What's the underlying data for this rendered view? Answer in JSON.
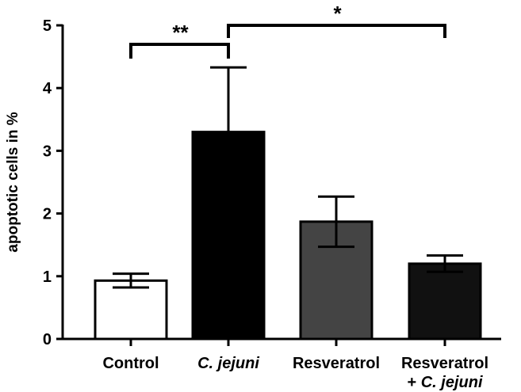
{
  "chart_data": {
    "type": "bar",
    "title": "",
    "xlabel": "",
    "ylabel": "apoptotic cells in %",
    "ylim": [
      0,
      5
    ],
    "yticks": [
      "0",
      "1",
      "2",
      "3",
      "4",
      "5"
    ],
    "grid": false,
    "legend": "none",
    "categories": [
      {
        "line1": "Control",
        "line2": "",
        "italic1": false,
        "italic2": false
      },
      {
        "line1": "C. jejuni",
        "line2": "",
        "italic1": true,
        "italic2": false
      },
      {
        "line1": "Resveratrol",
        "line2": "",
        "italic1": false,
        "italic2": false
      },
      {
        "line1": "Resveratrol",
        "line2": "+ C. jejuni",
        "italic1": false,
        "italic2": true
      }
    ],
    "values": [
      0.93,
      3.3,
      1.87,
      1.2
    ],
    "errors": [
      0.11,
      1.03,
      0.4,
      0.13
    ],
    "colors": [
      "#ffffff",
      "#000000",
      "#444444",
      "#111111"
    ],
    "significance": [
      {
        "from": 0,
        "to": 1,
        "label": "**"
      },
      {
        "from": 1,
        "to": 3,
        "label": "*"
      }
    ]
  }
}
